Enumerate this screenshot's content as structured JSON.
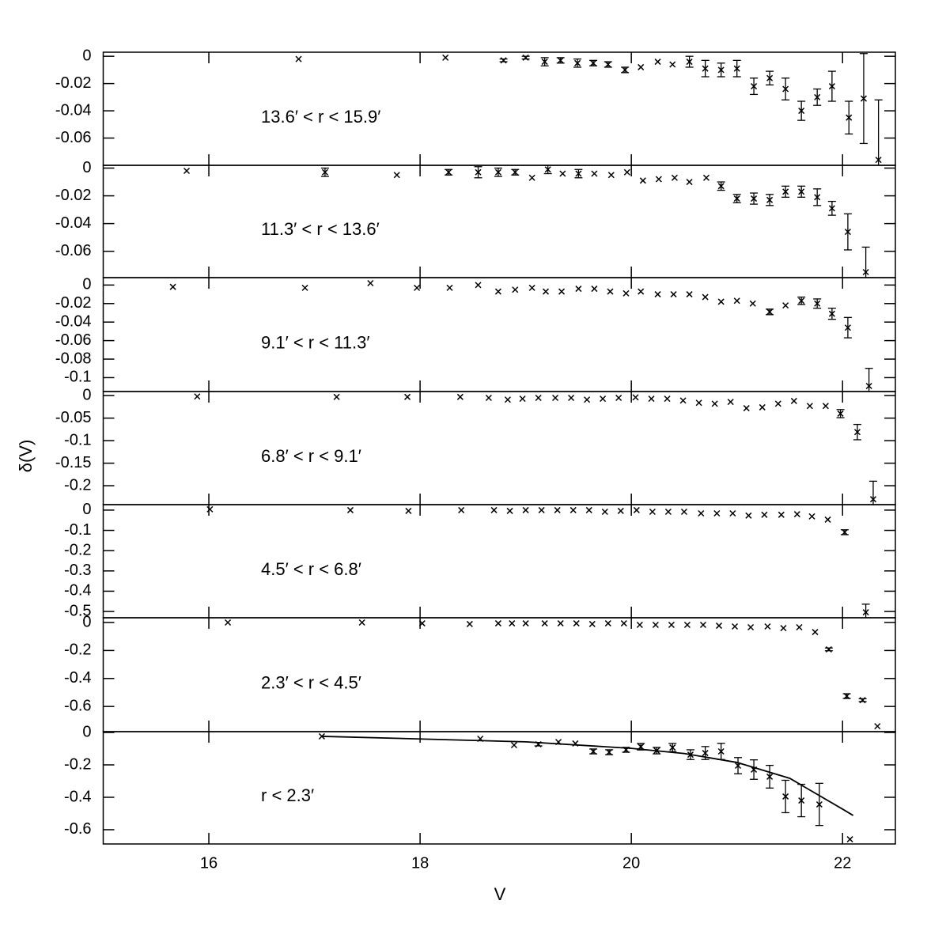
{
  "chart_data": [
    {
      "type": "scatter",
      "annotation": "13.6′ < r < 15.9′",
      "xlim": [
        15,
        22.5
      ],
      "xticks": [
        16,
        18,
        20,
        22
      ],
      "ylim": [
        -0.08,
        0.003
      ],
      "yticks": [
        0,
        -0.02,
        -0.04,
        -0.06
      ],
      "series": [
        {
          "x": [
            16.85,
            18.24,
            18.79,
            19.0,
            19.18,
            19.33,
            19.49,
            19.64,
            19.78,
            19.94,
            20.09,
            20.25,
            20.39,
            20.55,
            20.7,
            20.85,
            21.0,
            21.16,
            21.31,
            21.46,
            21.61,
            21.76,
            21.9,
            22.06,
            22.2,
            22.34
          ],
          "values": [
            -0.002,
            -0.001,
            -0.003,
            -0.001,
            -0.004,
            -0.003,
            -0.005,
            -0.005,
            -0.006,
            -0.01,
            -0.008,
            -0.004,
            -0.006,
            -0.004,
            -0.009,
            -0.01,
            -0.009,
            -0.022,
            -0.016,
            -0.024,
            -0.04,
            -0.03,
            -0.022,
            -0.045,
            -0.031,
            -0.076
          ],
          "errors": [
            null,
            null,
            0.001,
            0.001,
            0.003,
            0.002,
            0.003,
            0.002,
            0.002,
            0.002,
            null,
            null,
            null,
            0.004,
            0.006,
            0.005,
            0.006,
            0.006,
            0.005,
            0.008,
            0.007,
            0.006,
            0.011,
            0.012,
            0.033,
            0.044
          ]
        }
      ]
    },
    {
      "type": "scatter",
      "annotation": "11.3′ < r < 13.6′",
      "xlim": [
        15,
        22.5
      ],
      "xticks": [
        16,
        18,
        20,
        22
      ],
      "ylim": [
        -0.079,
        0.002
      ],
      "yticks": [
        0,
        -0.02,
        -0.04,
        -0.06
      ],
      "series": [
        {
          "x": [
            15.79,
            17.1,
            17.78,
            18.27,
            18.55,
            18.74,
            18.9,
            19.06,
            19.21,
            19.35,
            19.5,
            19.65,
            19.81,
            19.96,
            20.11,
            20.26,
            20.41,
            20.55,
            20.71,
            20.85,
            21.0,
            21.16,
            21.31,
            21.46,
            21.61,
            21.76,
            21.9,
            22.05,
            22.22
          ],
          "values": [
            -0.002,
            -0.003,
            -0.005,
            -0.003,
            -0.003,
            -0.003,
            -0.003,
            -0.007,
            -0.001,
            -0.004,
            -0.004,
            -0.004,
            -0.005,
            -0.003,
            -0.009,
            -0.008,
            -0.007,
            -0.01,
            -0.007,
            -0.013,
            -0.022,
            -0.022,
            -0.023,
            -0.017,
            -0.017,
            -0.021,
            -0.029,
            -0.046,
            -0.075
          ],
          "errors": [
            null,
            0.003,
            null,
            0.002,
            0.004,
            0.003,
            0.002,
            null,
            0.003,
            null,
            0.003,
            null,
            null,
            null,
            null,
            null,
            null,
            null,
            null,
            0.003,
            0.003,
            0.004,
            0.004,
            0.004,
            0.004,
            0.006,
            0.005,
            0.013,
            0.018
          ]
        }
      ]
    },
    {
      "type": "scatter",
      "annotation": "9.1′ < r < 11.3′",
      "xlim": [
        15,
        22.5
      ],
      "xticks": [
        16,
        18,
        20,
        22
      ],
      "ylim": [
        -0.115,
        0.008
      ],
      "yticks": [
        0,
        -0.02,
        -0.04,
        -0.06,
        -0.08,
        -0.1
      ],
      "series": [
        {
          "x": [
            15.66,
            16.91,
            17.53,
            17.97,
            18.28,
            18.55,
            18.74,
            18.9,
            19.06,
            19.19,
            19.34,
            19.5,
            19.65,
            19.8,
            19.95,
            20.09,
            20.25,
            20.4,
            20.55,
            20.7,
            20.85,
            21.0,
            21.15,
            21.31,
            21.46,
            21.61,
            21.76,
            21.9,
            22.05,
            22.25
          ],
          "values": [
            -0.002,
            -0.003,
            0.002,
            -0.003,
            -0.003,
            0,
            -0.007,
            -0.005,
            -0.003,
            -0.007,
            -0.007,
            -0.004,
            -0.004,
            -0.007,
            -0.009,
            -0.007,
            -0.01,
            -0.01,
            -0.01,
            -0.013,
            -0.018,
            -0.017,
            -0.02,
            -0.029,
            -0.022,
            -0.017,
            -0.02,
            -0.031,
            -0.046,
            -0.109
          ],
          "errors": [
            null,
            null,
            null,
            null,
            null,
            null,
            null,
            null,
            null,
            null,
            null,
            null,
            null,
            null,
            null,
            null,
            null,
            null,
            null,
            null,
            null,
            null,
            null,
            0.003,
            null,
            0.004,
            0.005,
            0.006,
            0.011,
            0.019
          ]
        }
      ]
    },
    {
      "type": "scatter",
      "annotation": "6.8′ < r < 9.1′",
      "ylabel": "δ(V)",
      "xlim": [
        15,
        22.5
      ],
      "xticks": [
        16,
        18,
        20,
        22
      ],
      "ylim": [
        -0.242,
        0.009
      ],
      "yticks": [
        0,
        -0.05,
        -0.1,
        -0.15,
        -0.2
      ],
      "series": [
        {
          "x": [
            15.89,
            17.21,
            17.88,
            18.38,
            18.65,
            18.83,
            18.97,
            19.12,
            19.28,
            19.43,
            19.58,
            19.73,
            19.88,
            20.04,
            20.19,
            20.34,
            20.49,
            20.64,
            20.79,
            20.94,
            21.09,
            21.24,
            21.39,
            21.54,
            21.69,
            21.84,
            21.98,
            22.14,
            22.29
          ],
          "values": [
            -0.002,
            -0.003,
            -0.003,
            -0.003,
            -0.005,
            -0.009,
            -0.007,
            -0.005,
            -0.005,
            -0.005,
            -0.009,
            -0.007,
            -0.005,
            -0.004,
            -0.007,
            -0.007,
            -0.011,
            -0.016,
            -0.018,
            -0.014,
            -0.028,
            -0.026,
            -0.018,
            -0.012,
            -0.023,
            -0.023,
            -0.04,
            -0.081,
            -0.23
          ],
          "errors": [
            null,
            null,
            null,
            null,
            null,
            null,
            null,
            null,
            null,
            null,
            null,
            null,
            null,
            null,
            null,
            null,
            null,
            null,
            null,
            null,
            null,
            null,
            null,
            null,
            null,
            null,
            0.009,
            0.017,
            0.04
          ]
        }
      ]
    },
    {
      "type": "scatter",
      "annotation": "4.5′ < r < 6.8′",
      "xlim": [
        15,
        22.5
      ],
      "xticks": [
        16,
        18,
        20,
        22
      ],
      "ylim": [
        -0.531,
        0.027
      ],
      "yticks": [
        0,
        -0.1,
        -0.2,
        -0.3,
        -0.4,
        -0.5
      ],
      "series": [
        {
          "x": [
            16.01,
            17.34,
            17.89,
            18.39,
            18.7,
            18.85,
            19.0,
            19.15,
            19.3,
            19.45,
            19.6,
            19.75,
            19.9,
            20.05,
            20.2,
            20.35,
            20.5,
            20.66,
            20.81,
            20.96,
            21.11,
            21.26,
            21.42,
            21.57,
            21.71,
            21.86,
            22.02,
            22.22
          ],
          "values": [
            0.004,
            0,
            -0.004,
            0,
            0,
            -0.004,
            0,
            0,
            0,
            0,
            0,
            -0.008,
            -0.004,
            0,
            -0.008,
            -0.008,
            -0.008,
            -0.016,
            -0.016,
            -0.016,
            -0.027,
            -0.023,
            -0.023,
            -0.02,
            -0.031,
            -0.047,
            -0.109,
            -0.504
          ],
          "errors": [
            null,
            null,
            null,
            null,
            null,
            null,
            null,
            null,
            null,
            null,
            null,
            null,
            null,
            null,
            null,
            null,
            null,
            null,
            null,
            null,
            null,
            null,
            null,
            null,
            null,
            null,
            0.012,
            0.04
          ]
        }
      ]
    },
    {
      "type": "scatter",
      "annotation": "2.3′ < r < 4.5′",
      "xlim": [
        15,
        22.5
      ],
      "xticks": [
        16,
        18,
        20,
        22
      ],
      "ylim": [
        -0.78,
        0.034
      ],
      "yticks": [
        0,
        -0.2,
        -0.4,
        -0.6
      ],
      "series": [
        {
          "x": [
            16.18,
            17.45,
            18.02,
            18.47,
            18.74,
            18.87,
            19.0,
            19.18,
            19.33,
            19.48,
            19.63,
            19.78,
            19.93,
            20.08,
            20.23,
            20.38,
            20.53,
            20.68,
            20.83,
            20.98,
            21.13,
            21.29,
            21.44,
            21.59,
            21.74,
            21.87,
            22.04,
            22.19,
            22.33
          ],
          "values": [
            0,
            0,
            -0.006,
            -0.011,
            -0.006,
            -0.006,
            -0.006,
            -0.006,
            -0.006,
            -0.006,
            -0.011,
            -0.006,
            -0.006,
            -0.017,
            -0.017,
            -0.017,
            -0.017,
            -0.017,
            -0.023,
            -0.028,
            -0.034,
            -0.028,
            -0.04,
            -0.034,
            -0.068,
            -0.192,
            -0.526,
            -0.555,
            -0.741
          ],
          "errors": [
            null,
            null,
            null,
            null,
            null,
            null,
            null,
            null,
            null,
            null,
            null,
            null,
            null,
            null,
            null,
            null,
            null,
            null,
            null,
            null,
            null,
            null,
            null,
            null,
            null,
            0.01,
            0.017,
            0.01,
            null
          ]
        }
      ]
    },
    {
      "type": "scatter",
      "annotation": "r < 2.3′",
      "xlabel": "V",
      "xlim": [
        15,
        22.5
      ],
      "xticks": [
        16,
        18,
        20,
        22
      ],
      "ylim": [
        -0.688,
        0.005
      ],
      "yticks": [
        0,
        -0.2,
        -0.4,
        -0.6
      ],
      "series": [
        {
          "x": [
            17.07,
            18.57,
            18.89,
            19.12,
            19.31,
            19.47,
            19.64,
            19.79,
            19.95,
            20.09,
            20.24,
            20.39,
            20.56,
            20.7,
            20.85,
            21.01,
            21.16,
            21.31,
            21.46,
            21.61,
            21.78,
            22.07
          ],
          "values": [
            -0.024,
            -0.039,
            -0.078,
            -0.073,
            -0.059,
            -0.068,
            -0.117,
            -0.122,
            -0.107,
            -0.088,
            -0.112,
            -0.093,
            -0.137,
            -0.127,
            -0.117,
            -0.205,
            -0.229,
            -0.273,
            -0.395,
            -0.42,
            -0.444,
            -0.659
          ],
          "errors": [
            null,
            null,
            null,
            0.01,
            null,
            null,
            0.015,
            0.015,
            0.015,
            0.02,
            0.02,
            0.025,
            0.03,
            0.04,
            0.05,
            0.05,
            0.06,
            0.07,
            0.1,
            0.1,
            0.13,
            null
          ]
        },
        {
          "line": true,
          "x": [
            17.07,
            18,
            19,
            20,
            20.5,
            21,
            21.5,
            22,
            22.1
          ],
          "values": [
            -0.024,
            -0.04,
            -0.058,
            -0.098,
            -0.13,
            -0.185,
            -0.283,
            -0.473,
            -0.512
          ]
        }
      ]
    }
  ]
}
